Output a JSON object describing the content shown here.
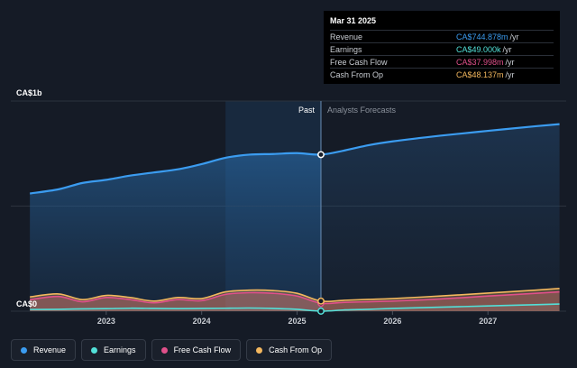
{
  "chart_data": {
    "type": "area",
    "currency_top_label": "CA$1b",
    "currency_bottom_label": "CA$0",
    "x_ticks": [
      "2023",
      "2024",
      "2025",
      "2026",
      "2027"
    ],
    "past_label": "Past",
    "forecast_label": "Analysts Forecasts",
    "ylim": [
      0,
      1000
    ],
    "y_unit": "CA$m",
    "series": [
      {
        "name": "Revenue",
        "color": "#3b9cf0",
        "x": [
          2022.2,
          2022.5,
          2022.75,
          2023.0,
          2023.25,
          2023.5,
          2023.75,
          2024.0,
          2024.25,
          2024.5,
          2024.75,
          2025.0,
          2025.25,
          2025.5,
          2025.75,
          2026.0,
          2026.5,
          2027.0,
          2027.5,
          2027.75
        ],
        "values": [
          560,
          580,
          610,
          625,
          645,
          660,
          675,
          700,
          730,
          745,
          748,
          752,
          745,
          765,
          790,
          808,
          835,
          858,
          880,
          890
        ]
      },
      {
        "name": "Earnings",
        "color": "#52e0d8",
        "x": [
          2022.2,
          2022.5,
          2022.75,
          2023.0,
          2023.25,
          2023.5,
          2023.75,
          2024.0,
          2024.25,
          2024.5,
          2024.75,
          2025.0,
          2025.25,
          2025.5,
          2025.75,
          2026.0,
          2026.5,
          2027.0,
          2027.5,
          2027.75
        ],
        "values": [
          8,
          9,
          11,
          12,
          14,
          13,
          12,
          13,
          14,
          15,
          13,
          9,
          0.049,
          6,
          9,
          13,
          19,
          25,
          31,
          34
        ]
      },
      {
        "name": "Free Cash Flow",
        "color": "#e0508a",
        "x": [
          2022.2,
          2022.5,
          2022.75,
          2023.0,
          2023.25,
          2023.5,
          2023.75,
          2024.0,
          2024.25,
          2024.5,
          2024.75,
          2025.0,
          2025.25,
          2025.5,
          2025.75,
          2026.0,
          2026.5,
          2027.0,
          2027.5,
          2027.75
        ],
        "values": [
          55,
          70,
          45,
          65,
          55,
          40,
          55,
          50,
          80,
          88,
          85,
          72,
          38,
          42,
          45,
          48,
          58,
          72,
          85,
          92
        ]
      },
      {
        "name": "Cash From Op",
        "color": "#f3b75e",
        "x": [
          2022.2,
          2022.5,
          2022.75,
          2023.0,
          2023.25,
          2023.5,
          2023.75,
          2024.0,
          2024.25,
          2024.5,
          2024.75,
          2025.0,
          2025.25,
          2025.5,
          2025.75,
          2026.0,
          2026.5,
          2027.0,
          2027.5,
          2027.75
        ],
        "values": [
          68,
          82,
          55,
          75,
          65,
          48,
          65,
          60,
          92,
          100,
          98,
          85,
          48,
          52,
          56,
          60,
          72,
          86,
          100,
          108
        ]
      }
    ],
    "past_end_x": 2025.25,
    "highlight_start_x": 2024.25
  },
  "tooltip": {
    "date": "Mar 31 2025",
    "rows": [
      {
        "name": "Revenue",
        "value": "CA$744.878m",
        "unit": "/yr",
        "color": "#3b9cf0"
      },
      {
        "name": "Earnings",
        "value": "CA$49.000k",
        "unit": "/yr",
        "color": "#52e0d8"
      },
      {
        "name": "Free Cash Flow",
        "value": "CA$37.998m",
        "unit": "/yr",
        "color": "#e0508a"
      },
      {
        "name": "Cash From Op",
        "value": "CA$48.137m",
        "unit": "/yr",
        "color": "#f3b75e"
      }
    ]
  },
  "legend": [
    {
      "label": "Revenue",
      "color": "#3b9cf0"
    },
    {
      "label": "Earnings",
      "color": "#52e0d8"
    },
    {
      "label": "Free Cash Flow",
      "color": "#e0508a"
    },
    {
      "label": "Cash From Op",
      "color": "#f3b75e"
    }
  ]
}
